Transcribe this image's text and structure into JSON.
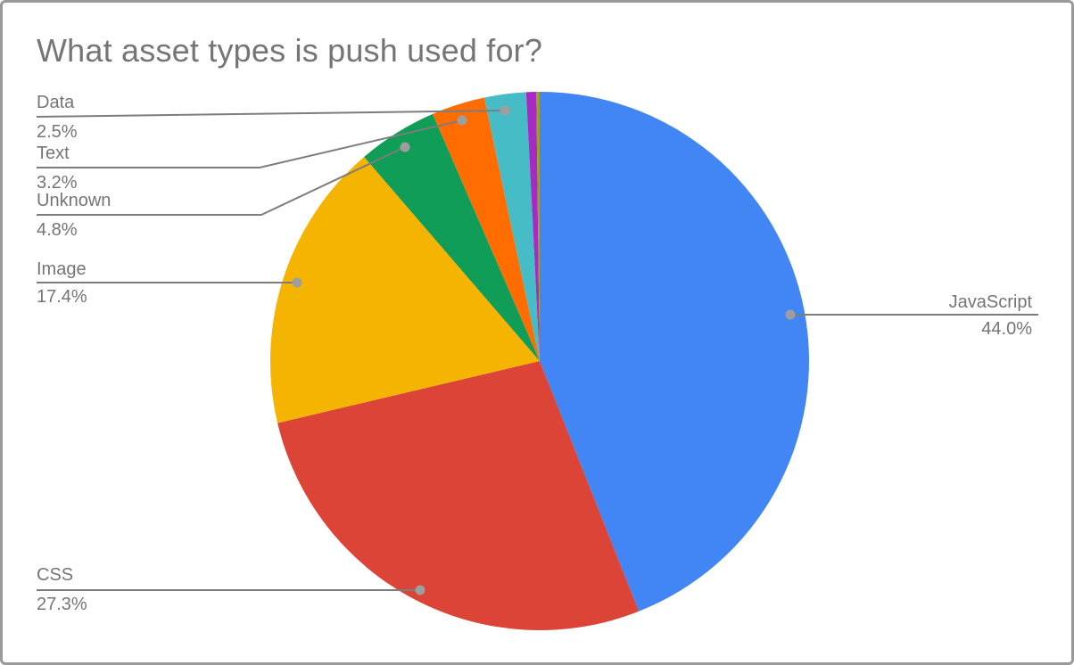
{
  "window": {
    "background": "#ffffff",
    "border_color": "#999999"
  },
  "chart": {
    "title": "What asset types is push used for?",
    "title_color": "#757575"
  },
  "chart_data": {
    "type": "pie",
    "title": "What asset types is push used for?",
    "direction": "clockwise",
    "start_angle_deg": 0,
    "legend": "none",
    "label_style": "outside callout labels with gray leader lines and dot markers",
    "slices": [
      {
        "label": "JavaScript",
        "value": 44.0,
        "percent_label": "44.0%",
        "color": "#4285F4"
      },
      {
        "label": "CSS",
        "value": 27.3,
        "percent_label": "27.3%",
        "color": "#DB4437"
      },
      {
        "label": "Image",
        "value": 17.4,
        "percent_label": "17.4%",
        "color": "#F4B400"
      },
      {
        "label": "Unknown",
        "value": 4.8,
        "percent_label": "4.8%",
        "color": "#0F9D58"
      },
      {
        "label": "Text",
        "value": 3.2,
        "percent_label": "3.2%",
        "color": "#FF6D00"
      },
      {
        "label": "Data",
        "value": 2.5,
        "percent_label": "2.5%",
        "color": "#46BDC6"
      },
      {
        "label": "",
        "value": 0.6,
        "percent_label": "",
        "color": "#A62BC4",
        "note": "unlabeled thin sliver"
      },
      {
        "label": "",
        "value": 0.2,
        "percent_label": "",
        "color": "#9E9D24",
        "note": "unlabeled hairline sliver"
      }
    ],
    "colors": {
      "label_text": "#757575",
      "leader_line": "#7d7d7d",
      "dot": "#9E9E9E"
    }
  }
}
